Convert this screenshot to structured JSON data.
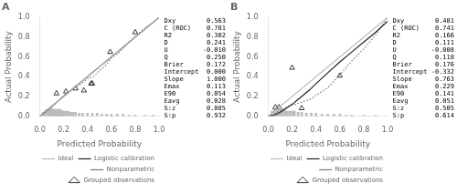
{
  "chart_data": [
    {
      "type": "line",
      "title": "A",
      "xlabel": "Predicted Probability",
      "ylabel": "Actual Probability",
      "xlim": [
        0,
        1
      ],
      "ylim": [
        0,
        1
      ],
      "xticks": [
        {
          "value": 0,
          "label": "0.0"
        },
        0.2,
        0.4,
        0.6,
        0.8,
        {
          "value": 1,
          "label": "1.0"
        }
      ],
      "yticks": [
        {
          "value": 0,
          "label": "0.0"
        },
        0.2,
        0.4,
        0.6,
        0.8,
        {
          "value": 1,
          "label": "1.0"
        }
      ],
      "grid": false,
      "legend": "lower right",
      "annotations": [
        "Dxy        0.563",
        "C (ROC)    0.781",
        "R2         0.302",
        "D          0.241",
        "U         -0.010",
        "Q          0.250",
        "Brier      0.172",
        "Intercept  0.000",
        "Slope      1.000",
        "Emax       0.113",
        "E90        0.054",
        "Eavg       0.028",
        "S:z        0.085",
        "S:p        0.932"
      ],
      "series": [
        {
          "name": "Ideal",
          "type": "line",
          "color": "#bbbbbb",
          "line_style": "solid",
          "x": [
            0,
            1
          ],
          "values": [
            0,
            1
          ]
        },
        {
          "name": "Logistic calibration",
          "type": "line",
          "color": "#222222",
          "line_style": "solid",
          "x": [
            0.0,
            0.05,
            0.1,
            0.15,
            0.2,
            0.25,
            0.3,
            0.35,
            0.4,
            0.45,
            0.5,
            0.55,
            0.6,
            0.65,
            0.7,
            0.75,
            0.8,
            0.85,
            0.9,
            0.95,
            1.0
          ],
          "values": [
            0.0,
            0.05,
            0.1,
            0.15,
            0.2,
            0.25,
            0.3,
            0.35,
            0.4,
            0.45,
            0.5,
            0.55,
            0.6,
            0.65,
            0.7,
            0.75,
            0.8,
            0.85,
            0.9,
            0.95,
            1.0
          ]
        },
        {
          "name": "Nonparametric",
          "type": "line",
          "color": "#777777",
          "line_style": "dotted",
          "x": [
            0.0,
            0.05,
            0.1,
            0.15,
            0.2,
            0.25,
            0.3,
            0.35,
            0.4,
            0.45,
            0.5,
            0.55,
            0.6,
            0.65,
            0.7,
            0.75,
            0.8,
            0.85,
            0.9,
            0.95,
            1.0
          ],
          "values": [
            0.0,
            0.04,
            0.09,
            0.15,
            0.21,
            0.25,
            0.3,
            0.33,
            0.38,
            0.4,
            0.46,
            0.51,
            0.59,
            0.63,
            0.69,
            0.75,
            0.81,
            0.86,
            0.91,
            0.95,
            1.0
          ]
        },
        {
          "type": "bar",
          "color": "#bbbbbb",
          "x": [
            0.03,
            0.05,
            0.07,
            0.08,
            0.09,
            0.1,
            0.11,
            0.12,
            0.13,
            0.14,
            0.15,
            0.16,
            0.17,
            0.18,
            0.19,
            0.2,
            0.22,
            0.24,
            0.26,
            0.28,
            0.3,
            0.33,
            0.36,
            0.4,
            0.44,
            0.48,
            0.52,
            0.56,
            0.6,
            0.65,
            0.7,
            0.75,
            0.8,
            0.88,
            0.95
          ],
          "values": [
            0.04,
            0.06,
            0.07,
            0.06,
            0.07,
            0.08,
            0.07,
            0.07,
            0.07,
            0.07,
            0.07,
            0.06,
            0.07,
            0.06,
            0.05,
            0.05,
            0.05,
            0.05,
            0.04,
            0.04,
            0.04,
            0.03,
            0.03,
            0.03,
            0.03,
            0.03,
            0.02,
            0.02,
            0.02,
            0.02,
            0.02,
            0.01,
            0.01,
            0.01,
            0.01
          ]
        },
        {
          "name": "Grouped observations",
          "type": "scatter",
          "color": "#222222",
          "marker": "triangle",
          "x": [
            0.14,
            0.17,
            0.22,
            0.3,
            0.37,
            0.43,
            0.44,
            0.59,
            0.8
          ],
          "values": [
            0.23,
            0.0,
            0.25,
            0.28,
            0.26,
            0.33,
            0.33,
            0.65,
            0.85
          ]
        }
      ]
    },
    {
      "type": "line",
      "title": "B",
      "xlabel": "Predicted Probability",
      "ylabel": "Actual Probability",
      "xlim": [
        0,
        1
      ],
      "ylim": [
        0,
        1
      ],
      "xticks": [
        {
          "value": 0,
          "label": "0.0"
        },
        0.2,
        0.4,
        0.6,
        0.8,
        {
          "value": 1,
          "label": "1.0"
        }
      ],
      "yticks": [
        {
          "value": 0,
          "label": "0.0"
        },
        0.2,
        0.4,
        0.6,
        0.8,
        {
          "value": 1,
          "label": "1.0"
        }
      ],
      "grid": false,
      "legend": "lower right",
      "annotations": [
        "Dxy        0.481",
        "C (ROC)    0.741",
        "R2         0.166",
        "D          0.111",
        "U         -0.008",
        "Q          0.118",
        "Brier      0.176",
        "Intercept -0.332",
        "Slope      0.763",
        "Emax       0.229",
        "E90        0.141",
        "Eavg       0.051",
        "S:z        0.505",
        "S:p        0.614"
      ],
      "series": [
        {
          "name": "Ideal",
          "type": "line",
          "color": "#bbbbbb",
          "line_style": "solid",
          "x": [
            0,
            1
          ],
          "values": [
            0,
            1
          ]
        },
        {
          "name": "Logistic calibration",
          "type": "line",
          "color": "#222222",
          "line_style": "solid",
          "x": [
            0.0,
            0.05,
            0.1,
            0.15,
            0.2,
            0.25,
            0.3,
            0.35,
            0.4,
            0.5,
            0.6,
            0.7,
            0.8,
            0.9,
            1.0
          ],
          "values": [
            0.0,
            0.01,
            0.04,
            0.08,
            0.12,
            0.17,
            0.22,
            0.27,
            0.33,
            0.44,
            0.55,
            0.65,
            0.75,
            0.85,
            0.96
          ]
        },
        {
          "name": "Nonparametric",
          "type": "line",
          "color": "#777777",
          "line_style": "dotted",
          "x": [
            0.0,
            0.05,
            0.1,
            0.15,
            0.2,
            0.25,
            0.3,
            0.35,
            0.4,
            0.5,
            0.6,
            0.7,
            0.8,
            0.9,
            1.0
          ],
          "values": [
            0.0,
            0.02,
            0.06,
            0.09,
            0.11,
            0.13,
            0.15,
            0.17,
            0.21,
            0.29,
            0.42,
            0.56,
            0.68,
            0.82,
            1.0
          ]
        },
        {
          "type": "bar",
          "color": "#bbbbbb",
          "x": [
            0.03,
            0.05,
            0.07,
            0.08,
            0.09,
            0.1,
            0.12,
            0.14,
            0.16,
            0.18,
            0.2,
            0.22,
            0.25,
            0.28,
            0.32,
            0.36,
            0.4,
            0.45,
            0.5,
            0.55,
            0.6,
            0.65,
            0.7,
            0.8,
            0.9
          ],
          "values": [
            0.05,
            0.07,
            0.06,
            0.07,
            0.07,
            0.08,
            0.07,
            0.06,
            0.05,
            0.05,
            0.05,
            0.05,
            0.04,
            0.04,
            0.03,
            0.03,
            0.03,
            0.02,
            0.02,
            0.02,
            0.02,
            0.01,
            0.01,
            0.01,
            0.01
          ]
        },
        {
          "name": "Grouped observations",
          "type": "scatter",
          "color": "#222222",
          "marker": "triangle",
          "x": [
            0.06,
            0.09,
            0.2,
            0.28,
            0.6
          ],
          "values": [
            0.09,
            0.09,
            0.49,
            0.08,
            0.41
          ]
        }
      ]
    }
  ]
}
